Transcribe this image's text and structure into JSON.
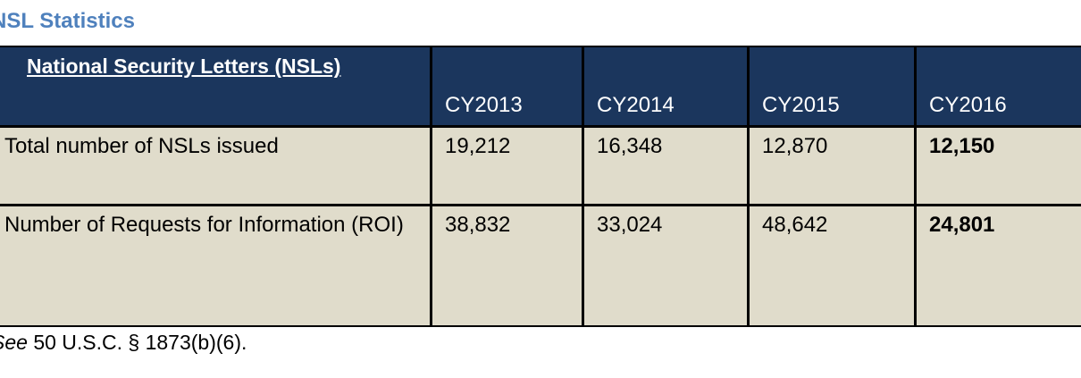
{
  "title": "NSL Statistics",
  "table": {
    "header_title": "National Security Letters (NSLs)",
    "columns": [
      "CY2013",
      "CY2014",
      "CY2015",
      "CY2016"
    ],
    "rows": [
      {
        "label": "Total number of NSLs issued",
        "values": [
          "19,212",
          "16,348",
          "12,870",
          "12,150"
        ]
      },
      {
        "label": "Number of Requests for Information (ROI)",
        "values": [
          "38,832",
          "33,024",
          "48,642",
          "24,801"
        ]
      }
    ]
  },
  "footnote": {
    "emphasis": "See",
    "text": "50 U.S.C. § 1873(b)(6)."
  }
}
